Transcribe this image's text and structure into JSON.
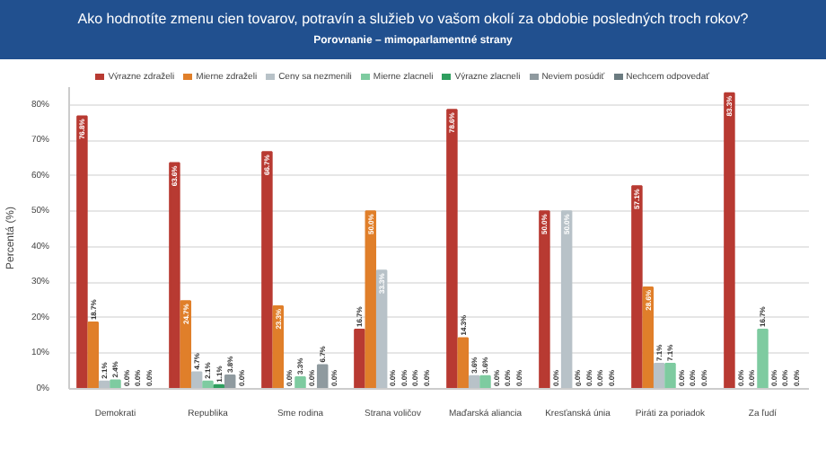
{
  "chart_data": {
    "type": "bar",
    "title": "Ako hodnotíte zmenu cien tovarov, potravín a služieb vo vašom okolí za obdobie posledných troch rokov?",
    "subtitle": "Porovnanie – mimoparlamentné strany",
    "ylabel": "Percentá (%)",
    "categories": [
      "Demokrati",
      "Republika",
      "Sme rodina",
      "Strana voličov",
      "Maďarská aliancia",
      "Kresťanská únia",
      "Piráti za poriadok",
      "Za ľudí"
    ],
    "series": [
      {
        "name": "Výrazne zdraželi",
        "color": "#b83a32",
        "values": [
          76.8,
          63.6,
          66.7,
          16.7,
          78.6,
          50.0,
          57.1,
          83.3
        ],
        "value_labels": [
          "76.8%",
          "63.6%",
          "66.7%",
          "16.7%",
          "78.6%",
          "50.0%",
          "57.1%",
          "83.3%"
        ]
      },
      {
        "name": "Mierne zdraželi",
        "color": "#e07f2a",
        "values": [
          18.7,
          24.7,
          23.3,
          50.0,
          14.3,
          0.0,
          28.6,
          0.0
        ],
        "value_labels": [
          "18.7%",
          "24.7%",
          "23.3%",
          "50.0%",
          "14.3%",
          "0.0%",
          "28.6%",
          "0.0%"
        ]
      },
      {
        "name": "Ceny sa nezmenili",
        "color": "#b8c2c8",
        "values": [
          2.1,
          4.7,
          0.0,
          33.3,
          3.6,
          50.0,
          7.1,
          0.0
        ],
        "value_labels": [
          "2.1%",
          "4.7%",
          "0.0%",
          "33.3%",
          "3.6%",
          "50.0%",
          "7.1%",
          "0.0%"
        ]
      },
      {
        "name": "Mierne zlacneli",
        "color": "#7ecba0",
        "values": [
          2.4,
          2.1,
          3.3,
          0.0,
          3.6,
          0.0,
          7.1,
          16.7
        ],
        "value_labels": [
          "2.4%",
          "2.1%",
          "3.3%",
          "0.0%",
          "3.6%",
          "0.0%",
          "7.1%",
          "16.7%"
        ]
      },
      {
        "name": "Výrazne zlacneli",
        "color": "#2e9e5e",
        "values": [
          0.0,
          1.1,
          0.0,
          0.0,
          0.0,
          0.0,
          0.0,
          0.0
        ],
        "value_labels": [
          "0.0%",
          "1.1%",
          "0.0%",
          "0.0%",
          "0.0%",
          "0.0%",
          "0.0%",
          "0.0%"
        ]
      },
      {
        "name": "Neviem posúdiť",
        "color": "#8f9a9f",
        "values": [
          0.0,
          3.8,
          6.7,
          0.0,
          0.0,
          0.0,
          0.0,
          0.0
        ],
        "value_labels": [
          "0.0%",
          "3.8%",
          "6.7%",
          "0.0%",
          "0.0%",
          "0.0%",
          "0.0%",
          "0.0%"
        ]
      },
      {
        "name": "Nechcem odpovedať",
        "color": "#6b7b80",
        "values": [
          0.0,
          0.0,
          0.0,
          0.0,
          0.0,
          0.0,
          0.0,
          0.0
        ],
        "value_labels": [
          "0.0%",
          "0.0%",
          "0.0%",
          "0.0%",
          "0.0%",
          "0.0%",
          "0.0%",
          "0.0%"
        ]
      }
    ],
    "ylim": [
      0,
      85
    ],
    "yticks": [
      {
        "value": 0,
        "label": "0%"
      },
      {
        "value": 10,
        "label": "10%"
      },
      {
        "value": 20,
        "label": "20%"
      },
      {
        "value": 30,
        "label": "30%"
      },
      {
        "value": 40,
        "label": "40%"
      },
      {
        "value": 50,
        "label": "50%"
      },
      {
        "value": 60,
        "label": "60%"
      },
      {
        "value": 70,
        "label": "70%"
      },
      {
        "value": 80,
        "label": "80%"
      }
    ],
    "grid": "y",
    "legend": "top right"
  }
}
